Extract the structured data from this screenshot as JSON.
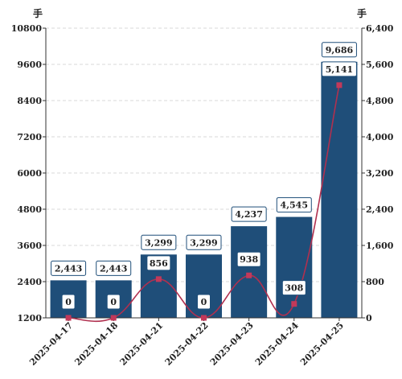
{
  "chart_data": {
    "type": "bar",
    "categories": [
      "2025-04-17",
      "2025-04-18",
      "2025-04-21",
      "2025-04-22",
      "2025-04-23",
      "2025-04-24",
      "2025-04-25"
    ],
    "series": [
      {
        "type": "bar",
        "axis": "left",
        "values": [
          2443,
          2443,
          3299,
          3299,
          4237,
          4545,
          9686
        ],
        "labels": [
          "2,443",
          "2,443",
          "3,299",
          "3,299",
          "4,237",
          "4,545",
          "9,686"
        ]
      },
      {
        "type": "line",
        "axis": "right",
        "values": [
          0,
          0,
          856,
          0,
          938,
          308,
          5141
        ],
        "labels": [
          "0",
          "0",
          "856",
          "0",
          "938",
          "308",
          "5,141"
        ]
      }
    ],
    "y_left": {
      "unit": "手",
      "range": [
        1200,
        10800
      ],
      "ticks": [
        "1200",
        "2400",
        "3600",
        "4800",
        "6000",
        "7200",
        "8400",
        "9600",
        "10800"
      ]
    },
    "y_right": {
      "unit": "手",
      "range": [
        0,
        6400
      ],
      "ticks": [
        "0",
        "800",
        "1,600",
        "2,400",
        "3,200",
        "4,000",
        "4,800",
        "5,600",
        "6,400"
      ]
    },
    "grid": true,
    "colors": {
      "bar": "#1f4e79",
      "line": "#b0304f",
      "marker": "#c2395a"
    }
  }
}
